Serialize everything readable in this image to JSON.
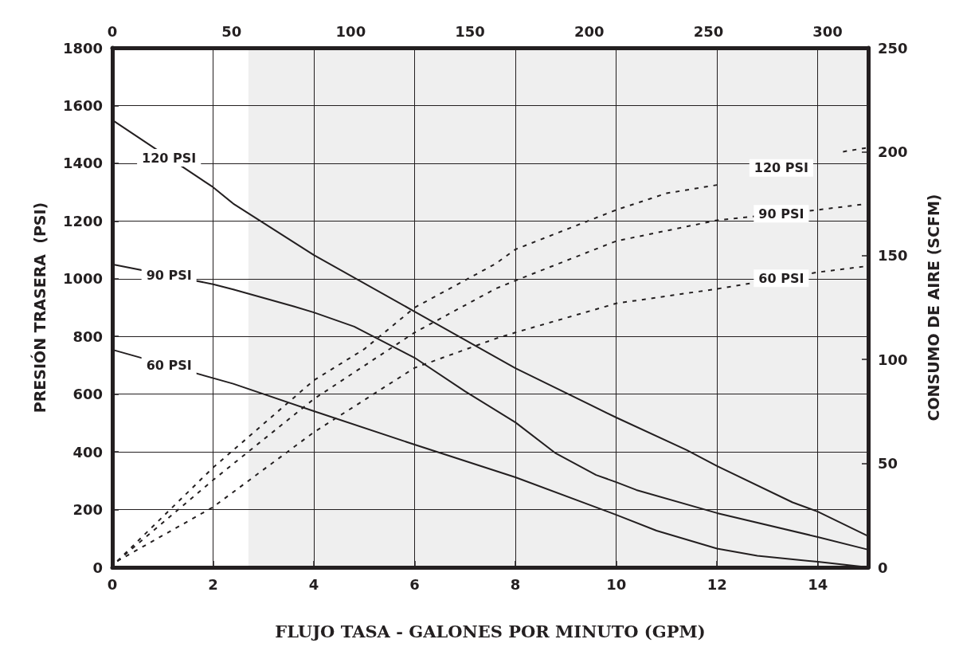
{
  "chart_data": {
    "type": "line",
    "xlabel": "FLUJO TASA - GALONES POR MINUTO (GPM)",
    "ylabel": "PRESIÓN TRASERA  (PSI)",
    "y2label": "CONSUMO DE AIRE (SCFM)",
    "xlim": [
      0,
      15
    ],
    "xticks": [
      0,
      2,
      4,
      6,
      8,
      10,
      12,
      14
    ],
    "x2lim": [
      0,
      317
    ],
    "x2ticks": [
      0,
      50,
      100,
      150,
      200,
      250,
      300
    ],
    "ylim": [
      0,
      1800
    ],
    "yticks": [
      0,
      200,
      400,
      600,
      800,
      1000,
      1200,
      1400,
      1600,
      1800
    ],
    "y2lim": [
      0,
      250
    ],
    "y2ticks": [
      0,
      50,
      100,
      150,
      200,
      250
    ],
    "grid": true,
    "line_style": "solid",
    "marker": "none",
    "bands": [
      {
        "axis": "x",
        "from": 2.7,
        "to": 15,
        "color": "#efefef"
      }
    ],
    "series": [
      {
        "name": "120 PSI",
        "color": "#231f20",
        "x": [
          0,
          2,
          2.4,
          4,
          6,
          8,
          10,
          11.4,
          12,
          13.5,
          14,
          15
        ],
        "values": [
          1550,
          1317,
          1260,
          1082,
          886,
          690,
          519,
          406,
          351,
          225,
          193,
          108
        ]
      },
      {
        "name": "90 PSI",
        "color": "#231f20",
        "x": [
          0,
          2,
          2.4,
          3.6,
          4,
          4.8,
          6,
          7,
          8,
          8.8,
          9.6,
          10,
          10.4,
          12,
          14,
          15
        ],
        "values": [
          1050,
          981,
          963,
          904,
          883,
          834,
          726,
          610,
          502,
          395,
          320,
          295,
          268,
          188,
          105,
          61
        ]
      },
      {
        "name": "60 PSI",
        "color": "#231f20",
        "x": [
          0,
          2.4,
          4,
          6,
          8,
          10,
          10.8,
          12,
          12.8,
          14,
          15
        ],
        "values": [
          754,
          636,
          541,
          425,
          312,
          182,
          127,
          65,
          40,
          19,
          0
        ]
      },
      {
        "name": "120 PSI",
        "color": "#231f20",
        "axis": "y2",
        "line_style": "dashed",
        "x": [
          0.1,
          2,
          4,
          5,
          6,
          7.6,
          8,
          10,
          11,
          12,
          13,
          13.5,
          14.5,
          15
        ],
        "values": [
          3,
          48,
          90,
          105,
          125,
          146,
          153,
          172,
          180,
          184,
          null,
          null,
          200,
          202
        ]
      },
      {
        "name": "90 PSI",
        "color": "#231f20",
        "axis": "y2",
        "line_style": "dashed",
        "x": [
          0.1,
          2,
          4,
          6,
          7.6,
          8,
          10,
          12,
          14,
          15
        ],
        "values": [
          3,
          42,
          81,
          113,
          134,
          138,
          157,
          167,
          172,
          175
        ]
      },
      {
        "name": "60 PSI",
        "color": "#231f20",
        "axis": "y2",
        "line_style": "dashed",
        "x": [
          0.1,
          2,
          4,
          6,
          7.6,
          8,
          10,
          12,
          14,
          15
        ],
        "values": [
          3,
          29,
          65,
          96,
          110,
          113,
          127,
          134,
          142,
          145
        ]
      }
    ]
  }
}
